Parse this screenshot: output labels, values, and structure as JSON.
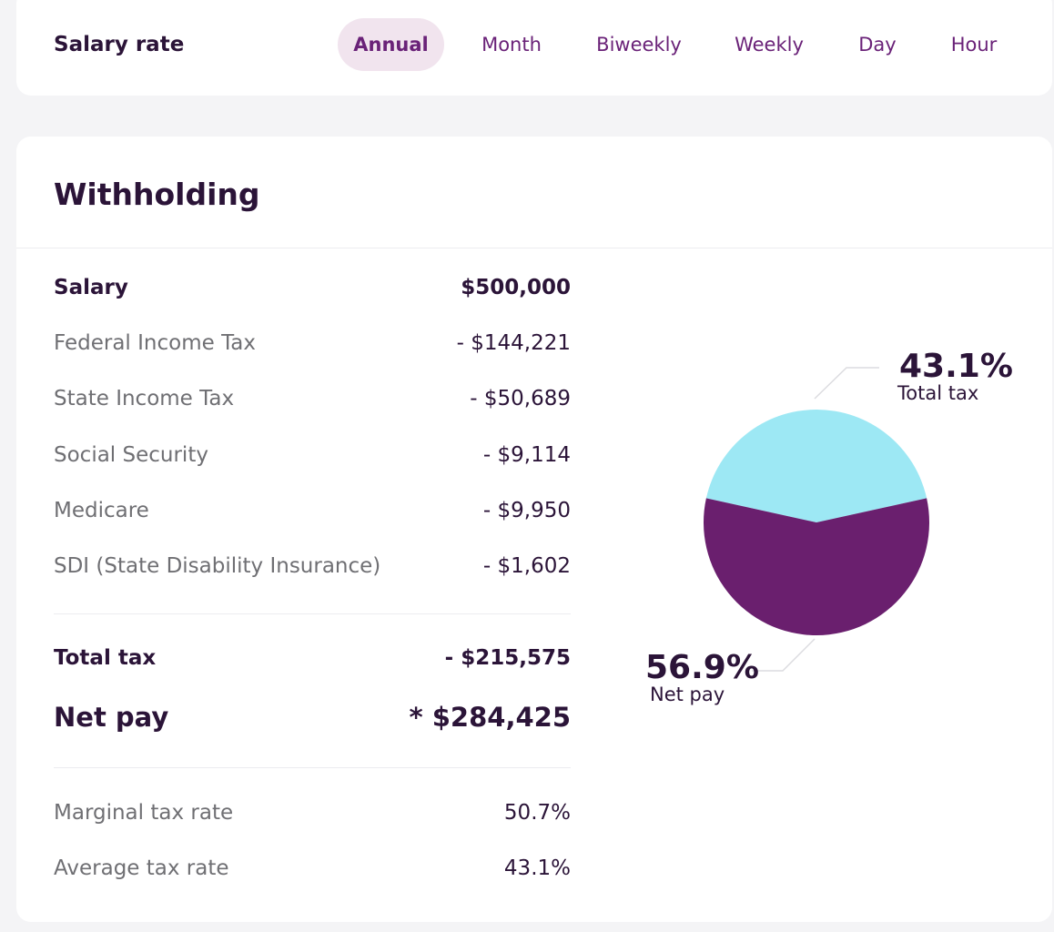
{
  "salary_rate": {
    "title": "Salary rate",
    "tabs": [
      {
        "label": "Annual",
        "active": true
      },
      {
        "label": "Month",
        "active": false
      },
      {
        "label": "Biweekly",
        "active": false
      },
      {
        "label": "Weekly",
        "active": false
      },
      {
        "label": "Day",
        "active": false
      },
      {
        "label": "Hour",
        "active": false
      }
    ]
  },
  "withholding": {
    "title": "Withholding",
    "rows": [
      {
        "label": "Salary",
        "value": "$500,000"
      },
      {
        "label": "Federal Income Tax",
        "value": "- $144,221"
      },
      {
        "label": "State Income Tax",
        "value": "- $50,689"
      },
      {
        "label": "Social Security",
        "value": "- $9,114"
      },
      {
        "label": "Medicare",
        "value": "- $9,950"
      },
      {
        "label": "SDI (State Disability Insurance)",
        "value": "- $1,602"
      }
    ],
    "total_tax": {
      "label": "Total tax",
      "value": "- $215,575"
    },
    "net_pay": {
      "label": "Net pay",
      "value": "* $284,425"
    },
    "marginal": {
      "label": "Marginal tax rate",
      "value": "50.7%"
    },
    "average": {
      "label": "Average tax rate",
      "value": "43.1%"
    }
  },
  "chart_data": {
    "type": "pie",
    "slices": [
      {
        "label": "Total tax",
        "value": 43.1,
        "display": "43.1%",
        "color": "#9de8f4"
      },
      {
        "label": "Net pay",
        "value": 56.9,
        "display": "56.9%",
        "color": "#6a1f6e"
      }
    ]
  }
}
